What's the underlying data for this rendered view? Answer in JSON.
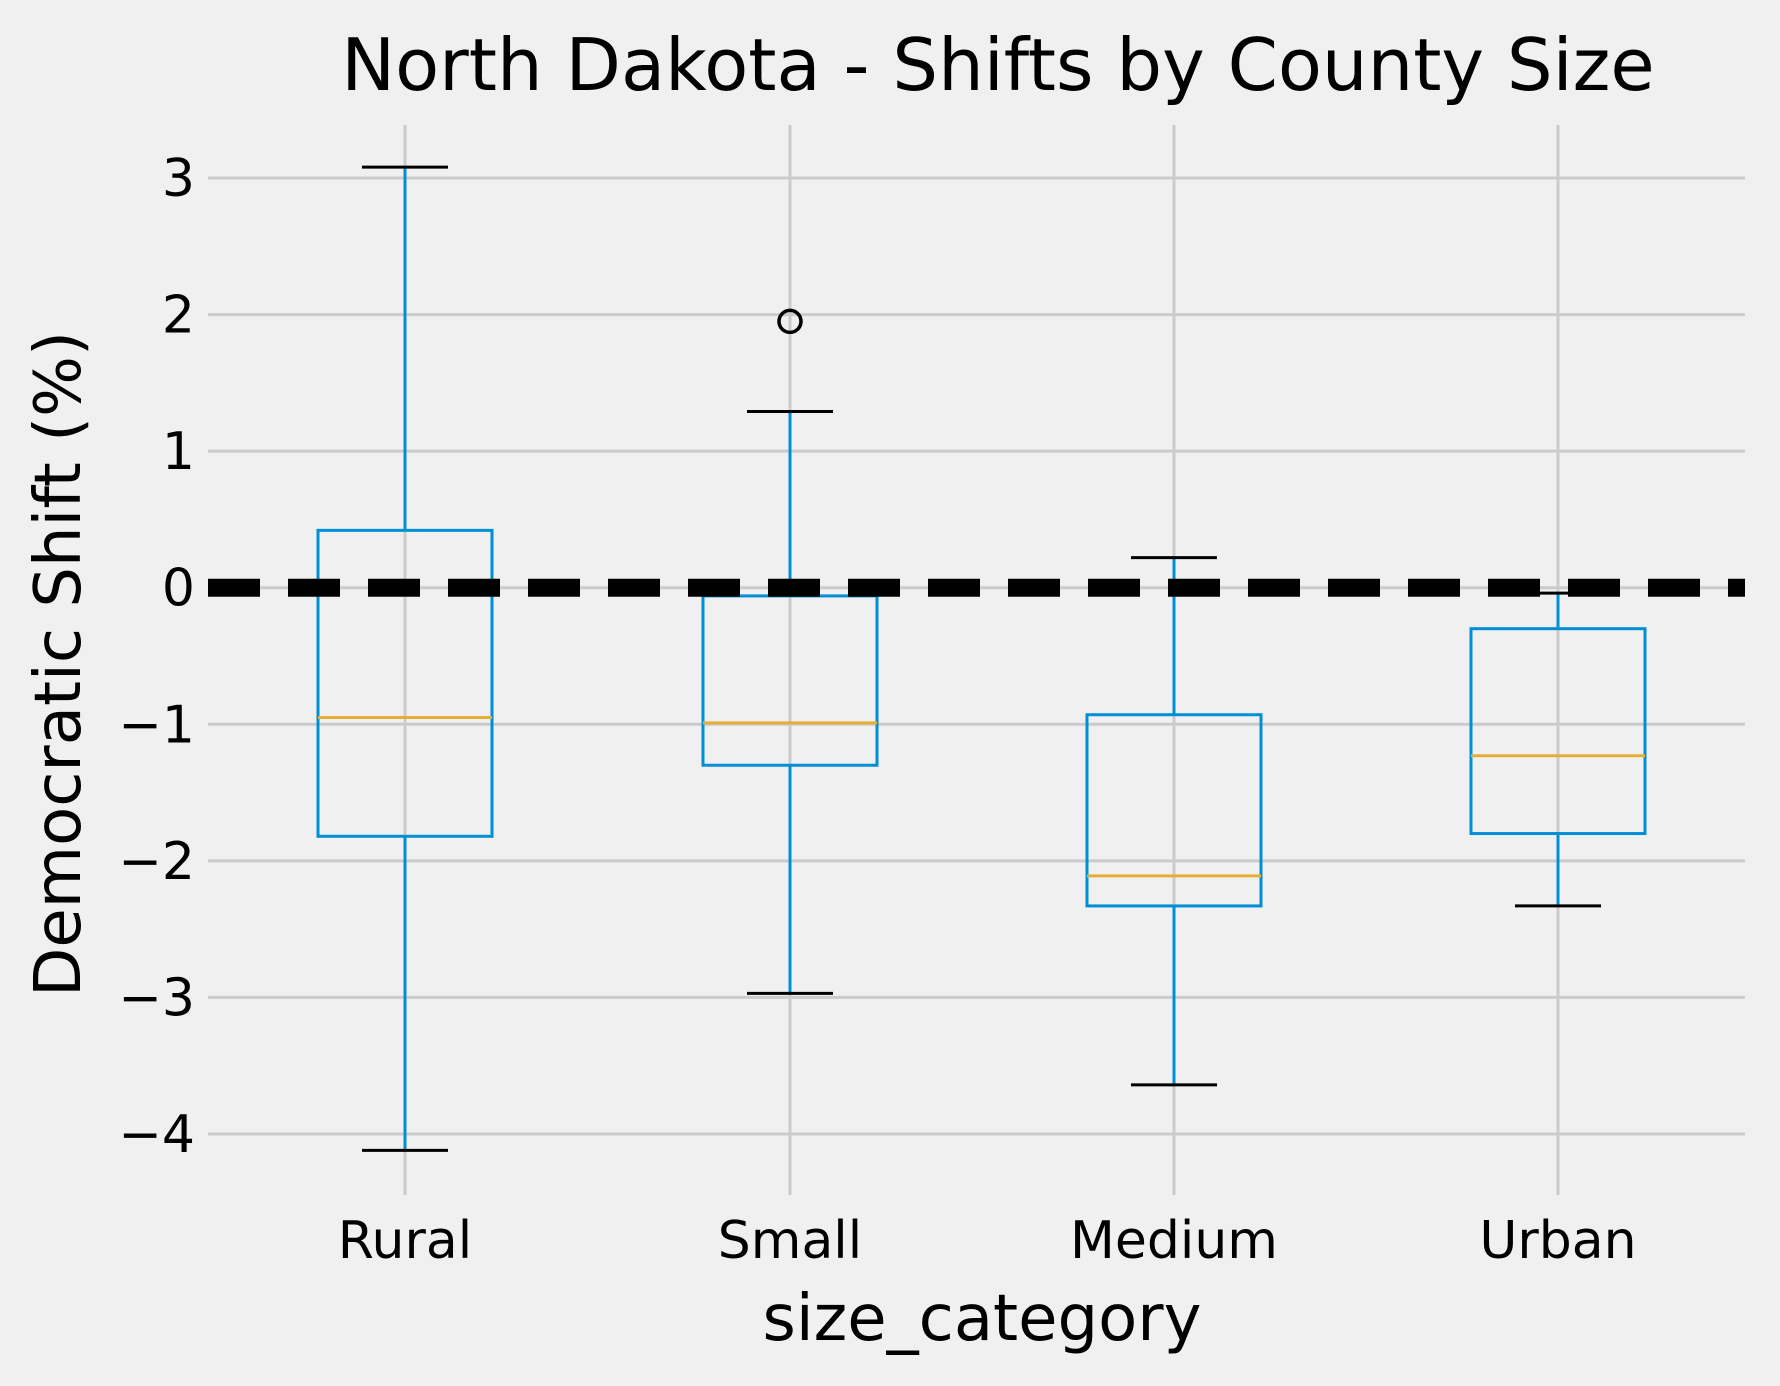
{
  "chart_data": {
    "type": "box",
    "title": "North Dakota - Shifts by County Size",
    "xlabel": "size_category",
    "ylabel": "Democratic Shift (%)",
    "ylim": [
      -4.45,
      3.4
    ],
    "yticks": [
      3,
      2,
      1,
      0,
      -1,
      -2,
      -3,
      -4
    ],
    "ytick_labels": [
      "3",
      "2",
      "1",
      "0",
      "−1",
      "−2",
      "−3",
      "−4"
    ],
    "grid": true,
    "reference_line": {
      "y": 0,
      "style": "dashed",
      "color": "#000000"
    },
    "categories": [
      "Rural",
      "Small",
      "Medium",
      "Urban"
    ],
    "boxes": [
      {
        "category": "Rural",
        "whisker_low": -4.12,
        "q1": -1.82,
        "median": -0.95,
        "q3": 0.42,
        "whisker_high": 3.08,
        "outliers": []
      },
      {
        "category": "Small",
        "whisker_low": -2.97,
        "q1": -1.3,
        "median": -0.99,
        "q3": -0.06,
        "whisker_high": 1.29,
        "outliers": [
          1.95
        ]
      },
      {
        "category": "Medium",
        "whisker_low": -3.64,
        "q1": -2.33,
        "median": -2.11,
        "q3": -0.93,
        "whisker_high": 0.22,
        "outliers": []
      },
      {
        "category": "Urban",
        "whisker_low": -2.33,
        "q1": -1.8,
        "median": -1.23,
        "q3": -0.3,
        "whisker_high": -0.04,
        "outliers": []
      }
    ],
    "colors": {
      "background": "#f0f0f0",
      "grid": "#cbcbcb",
      "box": "#008fd5",
      "median": "#e5ae38",
      "cap": "#000000",
      "outlier": "#000000"
    }
  }
}
